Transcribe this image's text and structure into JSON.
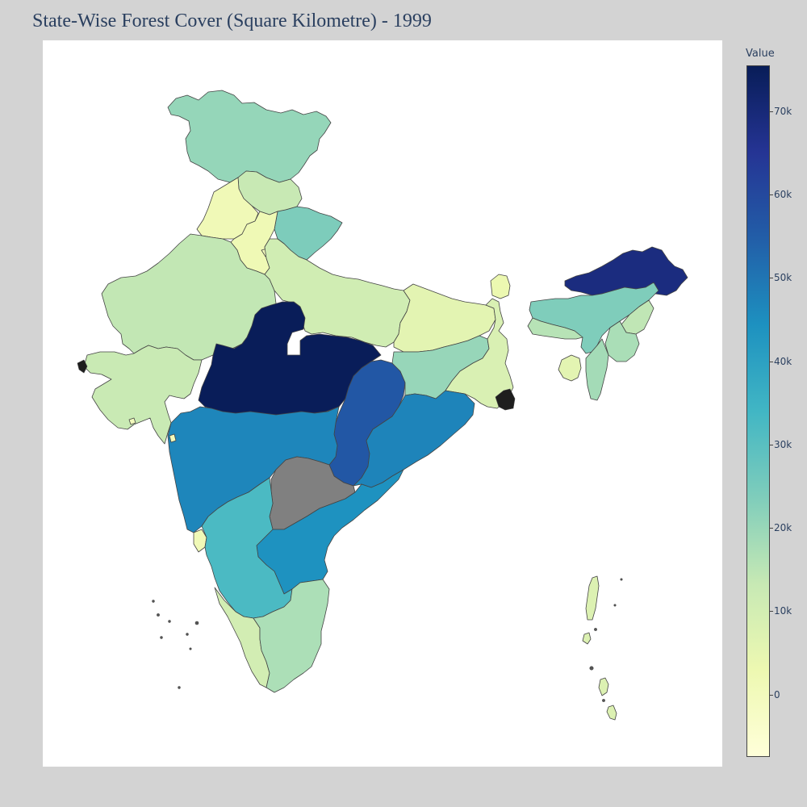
{
  "title": "State-Wise Forest Cover (Square Kilometre) - 1999",
  "colorbar": {
    "title": "Value",
    "min": -7500,
    "max": 75500,
    "ticks": [
      {
        "value": 70000,
        "label": "70k"
      },
      {
        "value": 60000,
        "label": "60k"
      },
      {
        "value": 50000,
        "label": "50k"
      },
      {
        "value": 40000,
        "label": "40k"
      },
      {
        "value": 30000,
        "label": "30k"
      },
      {
        "value": 20000,
        "label": "20k"
      },
      {
        "value": 10000,
        "label": "10k"
      },
      {
        "value": 0,
        "label": "0"
      }
    ],
    "colorscale": [
      "#ffffd9",
      "#edf8b1",
      "#c7e9b4",
      "#7fcdbb",
      "#41b6c4",
      "#1d91c0",
      "#225ea8",
      "#253494",
      "#081d58"
    ]
  },
  "no_data_color": "#808080",
  "states": [
    {
      "id": "jammu-kashmir",
      "value": 20400
    },
    {
      "id": "himachal-pradesh",
      "value": 13100
    },
    {
      "id": "punjab",
      "value": 1400
    },
    {
      "id": "uttarakhand",
      "value": 23900
    },
    {
      "id": "haryana",
      "value": 1800
    },
    {
      "id": "delhi",
      "value": 100
    },
    {
      "id": "rajasthan",
      "value": 13900
    },
    {
      "id": "uttar-pradesh",
      "value": 10700
    },
    {
      "id": "bihar",
      "value": 5700
    },
    {
      "id": "gujarat",
      "value": 12600
    },
    {
      "id": "madhya-pradesh",
      "value": 75300
    },
    {
      "id": "chhattisgarh",
      "value": 56400
    },
    {
      "id": "jharkhand",
      "value": 20200
    },
    {
      "id": "west-bengal",
      "value": 8300
    },
    {
      "id": "sikkim",
      "value": 3100
    },
    {
      "id": "odisha",
      "value": 47000
    },
    {
      "id": "maharashtra",
      "value": 46700
    },
    {
      "id": "telangana",
      "value": null
    },
    {
      "id": "andhra-pradesh",
      "value": 44200
    },
    {
      "id": "goa",
      "value": 1300
    },
    {
      "id": "karnataka",
      "value": 32400
    },
    {
      "id": "kerala",
      "value": 10300
    },
    {
      "id": "tamil-nadu",
      "value": 17100
    },
    {
      "id": "arunachal-pradesh",
      "value": 68800
    },
    {
      "id": "assam",
      "value": 23700
    },
    {
      "id": "meghalaya",
      "value": 15600
    },
    {
      "id": "nagaland",
      "value": 14200
    },
    {
      "id": "manipur",
      "value": 17400
    },
    {
      "id": "mizoram",
      "value": 18300
    },
    {
      "id": "tripura",
      "value": 5700
    },
    {
      "id": "andaman-nicobar",
      "value": 7600
    },
    {
      "id": "lakshadweep",
      "value": 0
    },
    {
      "id": "dadra-nagar-haveli",
      "value": 200
    },
    {
      "id": "daman-diu",
      "value": 0
    }
  ]
}
